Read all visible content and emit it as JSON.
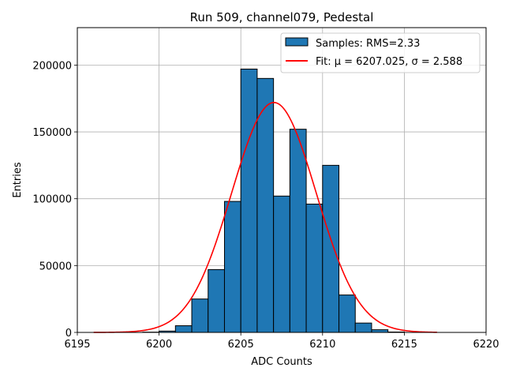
{
  "chart_data": {
    "type": "bar",
    "title": "Run 509, channel079, Pedestal",
    "xlabel": "ADC Counts",
    "ylabel": "Entries",
    "xlim": [
      6195,
      6220
    ],
    "ylim": [
      0,
      228000
    ],
    "xticks": [
      6195,
      6200,
      6205,
      6210,
      6215,
      6220
    ],
    "yticks": [
      0,
      50000,
      100000,
      150000,
      200000
    ],
    "grid": true,
    "legend_position": "top-right",
    "series": [
      {
        "name": "Samples: RMS=2.33",
        "kind": "histogram",
        "color": "#1f77b4",
        "edgecolor": "#000000",
        "bins": [
          {
            "x0": 6199,
            "x1": 6200,
            "value": 200
          },
          {
            "x0": 6200,
            "x1": 6201,
            "value": 1000
          },
          {
            "x0": 6201,
            "x1": 6202,
            "value": 5000
          },
          {
            "x0": 6202,
            "x1": 6203,
            "value": 25000
          },
          {
            "x0": 6203,
            "x1": 6204,
            "value": 47000
          },
          {
            "x0": 6204,
            "x1": 6205,
            "value": 98000
          },
          {
            "x0": 6205,
            "x1": 6206,
            "value": 197000
          },
          {
            "x0": 6206,
            "x1": 6207,
            "value": 190000
          },
          {
            "x0": 6207,
            "x1": 6208,
            "value": 102000
          },
          {
            "x0": 6208,
            "x1": 6209,
            "value": 152000
          },
          {
            "x0": 6209,
            "x1": 6210,
            "value": 96000
          },
          {
            "x0": 6210,
            "x1": 6211,
            "value": 125000
          },
          {
            "x0": 6211,
            "x1": 6212,
            "value": 28000
          },
          {
            "x0": 6212,
            "x1": 6213,
            "value": 7000
          },
          {
            "x0": 6213,
            "x1": 6214,
            "value": 2000
          },
          {
            "x0": 6214,
            "x1": 6215,
            "value": 300
          }
        ]
      },
      {
        "name": "Fit: μ = 6207.025, σ = 2.588",
        "kind": "gaussian",
        "color": "#ff0000",
        "mu": 6207.025,
        "sigma": 2.588,
        "amplitude": 172000,
        "x_range": [
          6196,
          6217
        ]
      }
    ]
  }
}
